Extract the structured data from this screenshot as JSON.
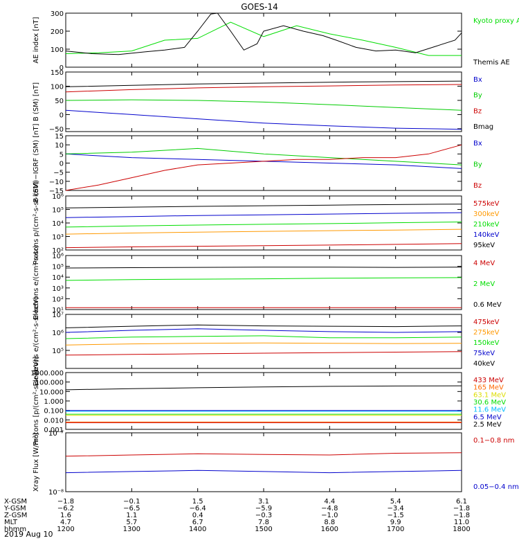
{
  "title": "GOES-14",
  "date_label": "2019 Aug 10",
  "chart_data": [
    {
      "type": "line",
      "ylabel": "AE index [nT]",
      "ylim": [
        0,
        300
      ],
      "yscale": "linear",
      "yticks": [
        0,
        100,
        200,
        300
      ],
      "ytick_labels": [
        "0",
        "100",
        "200",
        "300"
      ],
      "x_hours": [
        12,
        18
      ],
      "series": [
        {
          "name": "Kyoto proxy AE",
          "color": "#00dd00",
          "x": [
            12.0,
            12.5,
            13.0,
            13.5,
            14.0,
            14.5,
            15.0,
            15.5,
            16.0,
            16.5,
            17.0,
            17.5,
            18.0
          ],
          "y": [
            75,
            80,
            90,
            150,
            160,
            250,
            170,
            230,
            185,
            150,
            110,
            65,
            65
          ]
        },
        {
          "name": "Themis AE",
          "color": "#000000",
          "x": [
            12.0,
            12.4,
            12.8,
            13.2,
            13.5,
            13.8,
            14.0,
            14.2,
            14.3,
            14.5,
            14.7,
            14.9,
            15.0,
            15.3,
            15.6,
            15.9,
            16.1,
            16.4,
            16.7,
            17.0,
            17.3,
            17.6,
            17.9,
            18.0
          ],
          "y": [
            90,
            75,
            70,
            85,
            95,
            110,
            200,
            295,
            300,
            200,
            95,
            130,
            200,
            230,
            200,
            175,
            150,
            110,
            90,
            95,
            80,
            115,
            150,
            190
          ]
        }
      ]
    },
    {
      "type": "line",
      "ylabel": "B (SM) [nT]",
      "ylim": [
        -60,
        150
      ],
      "yscale": "linear",
      "yticks": [
        -50,
        0,
        50,
        100,
        150
      ],
      "ytick_labels": [
        "−50",
        "0",
        "50",
        "100",
        "150"
      ],
      "series": [
        {
          "name": "Bx",
          "color": "#0000cc",
          "x": [
            12,
            13,
            14,
            15,
            16,
            17,
            18
          ],
          "y": [
            15,
            0,
            -15,
            -30,
            -40,
            -48,
            -52
          ]
        },
        {
          "name": "By",
          "color": "#00cc00",
          "x": [
            12,
            13,
            14,
            15,
            16,
            17,
            18
          ],
          "y": [
            50,
            52,
            50,
            44,
            35,
            25,
            15
          ]
        },
        {
          "name": "Bz",
          "color": "#cc0000",
          "x": [
            12,
            13,
            14,
            15,
            16,
            17,
            18
          ],
          "y": [
            80,
            88,
            94,
            98,
            101,
            104,
            106
          ]
        },
        {
          "name": "Bmag",
          "color": "#000000",
          "x": [
            12,
            13,
            14,
            15,
            16,
            17,
            18
          ],
          "y": [
            98,
            103,
            108,
            111,
            114,
            116,
            118
          ]
        }
      ]
    },
    {
      "type": "line",
      "ylabel": "B (SM)−IGRF (SM) [nT]",
      "ylim": [
        -15,
        15
      ],
      "yscale": "linear",
      "yticks": [
        -15,
        -10,
        -5,
        0,
        5,
        10,
        15
      ],
      "ytick_labels": [
        "−15",
        "−10",
        "−5",
        "0",
        "5",
        "10",
        "15"
      ],
      "series": [
        {
          "name": "Bx",
          "color": "#0000cc",
          "x": [
            12,
            13,
            14,
            15,
            16,
            17,
            18
          ],
          "y": [
            5,
            3,
            2,
            1,
            0,
            -1,
            -3
          ]
        },
        {
          "name": "By",
          "color": "#00cc00",
          "x": [
            12,
            13,
            14,
            15,
            16,
            17,
            18
          ],
          "y": [
            5,
            6,
            8,
            5,
            3,
            1,
            -1
          ]
        },
        {
          "name": "Bz",
          "color": "#cc0000",
          "x": [
            12,
            12.5,
            13,
            13.5,
            14,
            14.5,
            15,
            15.5,
            16,
            16.5,
            17,
            17.5,
            18
          ],
          "y": [
            -15,
            -12,
            -8,
            -4,
            -1,
            0,
            1,
            2,
            2,
            3,
            3,
            5,
            10
          ]
        }
      ]
    },
    {
      "type": "line",
      "ylabel": "Protons p/(cm²-s-sr-keV)",
      "yscale": "log",
      "ylim": [
        100,
        1000000
      ],
      "yticks": [
        100,
        1000,
        10000,
        100000,
        1000000
      ],
      "ytick_labels": [
        "10²",
        "10³",
        "10⁴",
        "10⁵",
        "10⁶"
      ],
      "series": [
        {
          "name": "575keV",
          "color": "#cc0000",
          "x": [
            12,
            13,
            14,
            15,
            16,
            17,
            18
          ],
          "y": [
            150,
            170,
            190,
            210,
            230,
            260,
            300
          ]
        },
        {
          "name": "300keV",
          "color": "#ff9900",
          "x": [
            12,
            13,
            14,
            15,
            16,
            17,
            18
          ],
          "y": [
            1500,
            1800,
            2100,
            2400,
            2700,
            3000,
            3400
          ]
        },
        {
          "name": "210keV",
          "color": "#00dd00",
          "x": [
            12,
            13,
            14,
            15,
            16,
            17,
            18
          ],
          "y": [
            5000,
            6000,
            7000,
            8000,
            9000,
            10500,
            12000
          ]
        },
        {
          "name": "140keV",
          "color": "#0000cc",
          "x": [
            12,
            13,
            14,
            15,
            16,
            17,
            18
          ],
          "y": [
            25000,
            30000,
            36000,
            40000,
            46000,
            52000,
            58000
          ]
        },
        {
          "name": "95keV",
          "color": "#000000",
          "x": [
            12,
            13,
            14,
            15,
            16,
            17,
            18
          ],
          "y": [
            130000,
            150000,
            170000,
            190000,
            210000,
            230000,
            250000
          ]
        }
      ]
    },
    {
      "type": "line",
      "ylabel": "Electrons e/(cm²-s-sr)",
      "yscale": "log",
      "ylim": [
        10,
        1000000
      ],
      "yticks": [
        10,
        100,
        1000,
        10000,
        100000,
        1000000
      ],
      "ytick_labels": [
        "10¹",
        "10²",
        "10³",
        "10⁴",
        "10⁵",
        "10⁶"
      ],
      "series": [
        {
          "name": "4 MeV",
          "color": "#cc0000",
          "x": [
            12,
            13,
            14,
            15,
            16,
            17,
            18
          ],
          "y": [
            15,
            15,
            15,
            15,
            15,
            15,
            15
          ]
        },
        {
          "name": "2 MeV",
          "color": "#00dd00",
          "x": [
            12,
            13,
            14,
            15,
            16,
            17,
            18
          ],
          "y": [
            5000,
            6000,
            6500,
            7000,
            8000,
            8500,
            9000
          ]
        },
        {
          "name": "0.6 MeV",
          "color": "#000000",
          "x": [
            12,
            13,
            14,
            15,
            16,
            17,
            18
          ],
          "y": [
            70000,
            75000,
            80000,
            85000,
            85000,
            80000,
            85000
          ]
        }
      ]
    },
    {
      "type": "line",
      "ylabel": "Electrons e/(cm²-s-sr-keV)",
      "yscale": "log",
      "ylim": [
        10000,
        10000000
      ],
      "yticks": [
        100000,
        1000000,
        10000000
      ],
      "ytick_labels": [
        "10⁵",
        "10⁶",
        "10⁷"
      ],
      "series": [
        {
          "name": "475keV",
          "color": "#cc0000",
          "x": [
            12,
            13,
            14,
            15,
            16,
            17,
            18
          ],
          "y": [
            55000,
            60000,
            65000,
            70000,
            75000,
            80000,
            85000
          ]
        },
        {
          "name": "275keV",
          "color": "#ff9900",
          "x": [
            12,
            13,
            14,
            15,
            16,
            17,
            18
          ],
          "y": [
            200000,
            230000,
            250000,
            260000,
            250000,
            240000,
            250000
          ]
        },
        {
          "name": "150keV",
          "color": "#00dd00",
          "x": [
            12,
            13,
            14,
            15,
            16,
            17,
            18
          ],
          "y": [
            450000,
            550000,
            600000,
            650000,
            500000,
            500000,
            550000
          ]
        },
        {
          "name": "75keV",
          "color": "#0000cc",
          "x": [
            12,
            13,
            14,
            15,
            16,
            17,
            18
          ],
          "y": [
            1000000,
            1300000,
            1600000,
            1300000,
            1100000,
            1000000,
            1100000
          ]
        },
        {
          "name": "40keV",
          "color": "#000000",
          "x": [
            12,
            13,
            14,
            15,
            16,
            17,
            18
          ],
          "y": [
            1800000,
            2200000,
            2600000,
            2300000,
            2200000,
            2100000,
            2300000
          ]
        }
      ]
    },
    {
      "type": "line",
      "ylabel": "Protons [p/(cm²-s-sr-keV)]",
      "yscale": "log",
      "ylim": [
        0.001,
        1000
      ],
      "yticks": [
        0.001,
        0.01,
        0.1,
        1,
        10,
        100,
        1000
      ],
      "ytick_labels": [
        "0.001",
        "0.010",
        "0.100",
        "1.000",
        "10.000",
        "100.000",
        "1000.000"
      ],
      "series": [
        {
          "name": "433 MeV",
          "color": "#cc0000",
          "x": [
            12,
            18
          ],
          "y": [
            0.005,
            0.005
          ]
        },
        {
          "name": "165 MeV",
          "color": "#ff6600",
          "x": [
            12,
            18
          ],
          "y": [
            0.006,
            0.006
          ]
        },
        {
          "name": "63.1 MeV",
          "color": "#dddd00",
          "x": [
            12,
            18
          ],
          "y": [
            0.03,
            0.03
          ]
        },
        {
          "name": "30.6 MeV",
          "color": "#00dd00",
          "x": [
            12,
            18
          ],
          "y": [
            0.04,
            0.04
          ]
        },
        {
          "name": "11.6 MeV",
          "color": "#00bbff",
          "x": [
            12,
            18
          ],
          "y": [
            0.08,
            0.08
          ]
        },
        {
          "name": "6.5 MeV",
          "color": "#0000cc",
          "x": [
            12,
            18
          ],
          "y": [
            0.1,
            0.1
          ]
        },
        {
          "name": "2.5 MeV",
          "color": "#000000",
          "x": [
            12,
            13,
            14,
            15,
            16,
            17,
            18
          ],
          "y": [
            15,
            20,
            25,
            30,
            35,
            38,
            40
          ]
        }
      ]
    },
    {
      "type": "line",
      "ylabel": "Xray Flux [W/m²]",
      "yscale": "log",
      "ylim": [
        1e-08,
        1e-07
      ],
      "yticks": [
        1e-08,
        1e-07
      ],
      "ytick_labels": [
        "10⁻⁸",
        "10⁻⁷"
      ],
      "series": [
        {
          "name": "0.1−0.8 nm",
          "color": "#cc0000",
          "x": [
            12,
            13,
            14,
            15,
            16,
            17,
            18
          ],
          "y": [
            4e-08,
            4.2e-08,
            4.4e-08,
            4.3e-08,
            4.2e-08,
            4.5e-08,
            4.6e-08
          ]
        },
        {
          "name": "0.05−0.4 nm",
          "color": "#0000cc",
          "x": [
            12,
            13,
            14,
            15,
            16,
            17,
            18
          ],
          "y": [
            2.1e-08,
            2.2e-08,
            2.3e-08,
            2.2e-08,
            2.1e-08,
            2.2e-08,
            2.3e-08
          ]
        }
      ]
    }
  ],
  "orbit_table": {
    "rows": [
      {
        "label": "X-GSM",
        "values": [
          "−1.8",
          "−0.1",
          "1.5",
          "3.1",
          "4.4",
          "5.4",
          "6.1"
        ]
      },
      {
        "label": "Y-GSM",
        "values": [
          "−6.2",
          "−6.5",
          "−6.4",
          "−5.9",
          "−4.8",
          "−3.4",
          "−1.8"
        ]
      },
      {
        "label": "Z-GSM",
        "values": [
          "1.6",
          "1.1",
          "0.4",
          "−0.3",
          "−1.0",
          "−1.5",
          "−1.8"
        ]
      },
      {
        "label": "MLT",
        "values": [
          "4.7",
          "5.7",
          "6.7",
          "7.8",
          "8.8",
          "9.9",
          "11.0"
        ]
      },
      {
        "label": "hhmm",
        "values": [
          "1200",
          "1300",
          "1400",
          "1500",
          "1600",
          "1700",
          "1800"
        ]
      }
    ]
  }
}
